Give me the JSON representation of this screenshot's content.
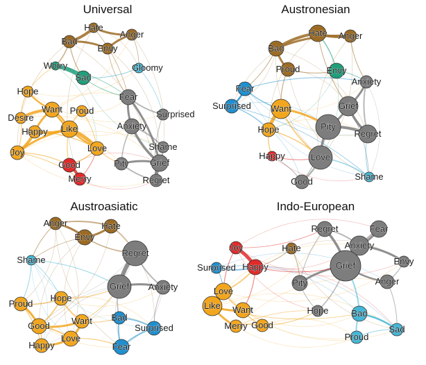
{
  "colors": {
    "brown": "#9c6b24",
    "orange": "#f2a61e",
    "grey": "#7d7d7d",
    "teal": "#1f9e7a",
    "lightblue": "#45b6d6",
    "blue": "#1f8fcf",
    "red": "#e12a2a"
  },
  "panels": [
    {
      "title": "Universal",
      "nodes": [
        {
          "id": "Hate",
          "group": "brown"
        },
        {
          "id": "Anger",
          "group": "brown"
        },
        {
          "id": "Bad",
          "group": "brown"
        },
        {
          "id": "Envy",
          "group": "brown"
        },
        {
          "id": "Worry",
          "group": "teal"
        },
        {
          "id": "Sad",
          "group": "teal"
        },
        {
          "id": "Gloomy",
          "group": "lightblue"
        },
        {
          "id": "Hope",
          "group": "orange"
        },
        {
          "id": "Want",
          "group": "orange"
        },
        {
          "id": "Proud",
          "group": "orange"
        },
        {
          "id": "Desire",
          "group": "orange"
        },
        {
          "id": "Happy",
          "group": "orange"
        },
        {
          "id": "Like",
          "group": "orange"
        },
        {
          "id": "Joy",
          "group": "orange"
        },
        {
          "id": "Love",
          "group": "orange"
        },
        {
          "id": "Good",
          "group": "red"
        },
        {
          "id": "Merry",
          "group": "red"
        },
        {
          "id": "Fear",
          "group": "grey"
        },
        {
          "id": "Surprised",
          "group": "grey"
        },
        {
          "id": "Anxiety",
          "group": "grey"
        },
        {
          "id": "Shame",
          "group": "grey"
        },
        {
          "id": "Pity",
          "group": "grey"
        },
        {
          "id": "Grief",
          "group": "grey"
        },
        {
          "id": "Regret",
          "group": "grey"
        }
      ]
    },
    {
      "title": "Austronesian",
      "nodes": [
        {
          "id": "Hate",
          "group": "brown"
        },
        {
          "id": "Anger",
          "group": "brown"
        },
        {
          "id": "Bad",
          "group": "brown"
        },
        {
          "id": "Proud",
          "group": "brown"
        },
        {
          "id": "Envy",
          "group": "teal"
        },
        {
          "id": "Fear",
          "group": "blue"
        },
        {
          "id": "Surprised",
          "group": "blue"
        },
        {
          "id": "Anxiety",
          "group": "grey"
        },
        {
          "id": "Want",
          "group": "orange"
        },
        {
          "id": "Grief",
          "group": "grey"
        },
        {
          "id": "Hope",
          "group": "orange"
        },
        {
          "id": "Pity",
          "group": "grey"
        },
        {
          "id": "Regret",
          "group": "grey"
        },
        {
          "id": "Happy",
          "group": "red"
        },
        {
          "id": "Love",
          "group": "grey"
        },
        {
          "id": "Good",
          "group": "grey"
        },
        {
          "id": "Shame",
          "group": "lightblue"
        }
      ]
    },
    {
      "title": "Austroasiatic",
      "nodes": [
        {
          "id": "Anger",
          "group": "brown"
        },
        {
          "id": "Hate",
          "group": "brown"
        },
        {
          "id": "Envy",
          "group": "brown"
        },
        {
          "id": "Regret",
          "group": "grey"
        },
        {
          "id": "Shame",
          "group": "lightblue"
        },
        {
          "id": "Grief",
          "group": "grey"
        },
        {
          "id": "Anxiety",
          "group": "grey"
        },
        {
          "id": "Hope",
          "group": "orange"
        },
        {
          "id": "Proud",
          "group": "orange"
        },
        {
          "id": "Bad",
          "group": "blue"
        },
        {
          "id": "Want",
          "group": "orange"
        },
        {
          "id": "Surprised",
          "group": "blue"
        },
        {
          "id": "Good",
          "group": "orange"
        },
        {
          "id": "Love",
          "group": "orange"
        },
        {
          "id": "Happy",
          "group": "orange"
        },
        {
          "id": "Fear",
          "group": "blue"
        }
      ]
    },
    {
      "title": "Indo-European",
      "nodes": [
        {
          "id": "Joy",
          "group": "red"
        },
        {
          "id": "Regret",
          "group": "grey"
        },
        {
          "id": "Fear",
          "group": "grey"
        },
        {
          "id": "Hate",
          "group": "brown"
        },
        {
          "id": "Anxiety",
          "group": "grey"
        },
        {
          "id": "Envy",
          "group": "grey"
        },
        {
          "id": "Surprised",
          "group": "blue"
        },
        {
          "id": "Happy",
          "group": "red"
        },
        {
          "id": "Grief",
          "group": "grey"
        },
        {
          "id": "Love",
          "group": "orange"
        },
        {
          "id": "Pity",
          "group": "grey"
        },
        {
          "id": "Anger",
          "group": "grey"
        },
        {
          "id": "Like",
          "group": "orange"
        },
        {
          "id": "Want",
          "group": "orange"
        },
        {
          "id": "Hope",
          "group": "grey"
        },
        {
          "id": "Bad",
          "group": "lightblue"
        },
        {
          "id": "Merry",
          "group": "orange"
        },
        {
          "id": "Good",
          "group": "orange"
        },
        {
          "id": "Sad",
          "group": "lightblue"
        },
        {
          "id": "Proud",
          "group": "lightblue"
        }
      ]
    }
  ]
}
